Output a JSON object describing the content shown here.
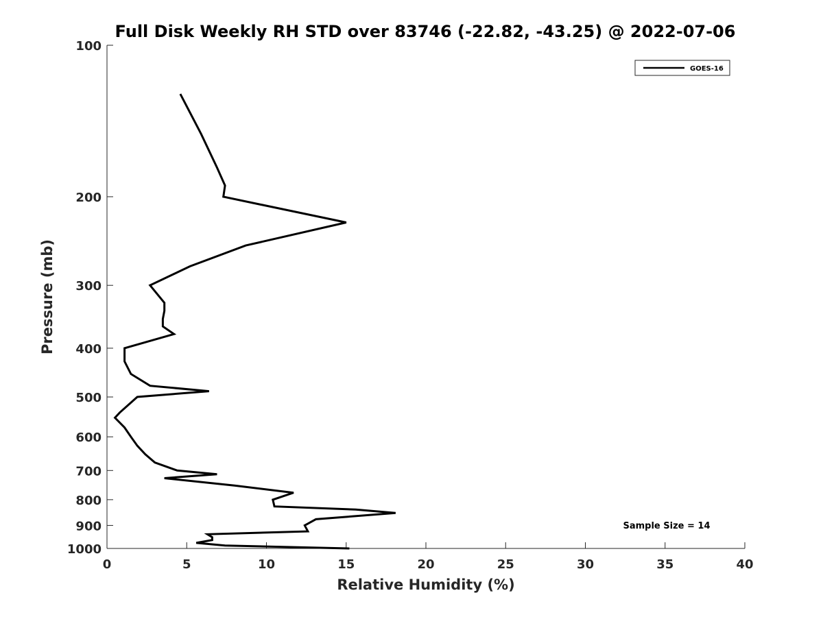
{
  "chart_data": {
    "type": "line",
    "title": "Full Disk Weekly RH STD over 83746 (-22.82, -43.25) @ 2022-07-06",
    "xlabel": "Relative Humidity (%)",
    "ylabel": "Pressure (mb)",
    "xlim": [
      0,
      40
    ],
    "ylim": [
      100,
      1000
    ],
    "y_scale": "log",
    "y_reversed": true,
    "xticks": [
      0,
      5,
      10,
      15,
      20,
      25,
      30,
      35,
      40
    ],
    "yticks": [
      100,
      200,
      300,
      400,
      500,
      600,
      700,
      800,
      900,
      1000
    ],
    "grid": false,
    "legend_position": "top-right",
    "annotation": "Sample Size = 14",
    "series": [
      {
        "name": "GOES-16",
        "color": "#000000",
        "points": [
          [
            4.6,
            125
          ],
          [
            5.9,
            150
          ],
          [
            6.9,
            175
          ],
          [
            7.4,
            190
          ],
          [
            7.3,
            200
          ],
          [
            15.0,
            225
          ],
          [
            8.7,
            250
          ],
          [
            5.2,
            275
          ],
          [
            2.7,
            300
          ],
          [
            3.6,
            325
          ],
          [
            3.6,
            337
          ],
          [
            3.5,
            350
          ],
          [
            3.5,
            362
          ],
          [
            4.2,
            375
          ],
          [
            1.1,
            400
          ],
          [
            1.1,
            425
          ],
          [
            1.5,
            450
          ],
          [
            2.7,
            475
          ],
          [
            6.4,
            487
          ],
          [
            1.9,
            500
          ],
          [
            0.8,
            537
          ],
          [
            0.5,
            550
          ],
          [
            1.1,
            575
          ],
          [
            1.5,
            600
          ],
          [
            1.9,
            625
          ],
          [
            2.4,
            650
          ],
          [
            3.0,
            675
          ],
          [
            4.4,
            700
          ],
          [
            6.9,
            712
          ],
          [
            3.6,
            725
          ],
          [
            8.0,
            750
          ],
          [
            11.7,
            775
          ],
          [
            10.4,
            800
          ],
          [
            10.5,
            825
          ],
          [
            15.6,
            837
          ],
          [
            18.1,
            850
          ],
          [
            13.1,
            875
          ],
          [
            12.4,
            900
          ],
          [
            12.6,
            925
          ],
          [
            6.3,
            937
          ],
          [
            6.6,
            950
          ],
          [
            6.6,
            962
          ],
          [
            5.6,
            975
          ],
          [
            7.4,
            987
          ],
          [
            15.2,
            1000
          ]
        ]
      }
    ]
  }
}
